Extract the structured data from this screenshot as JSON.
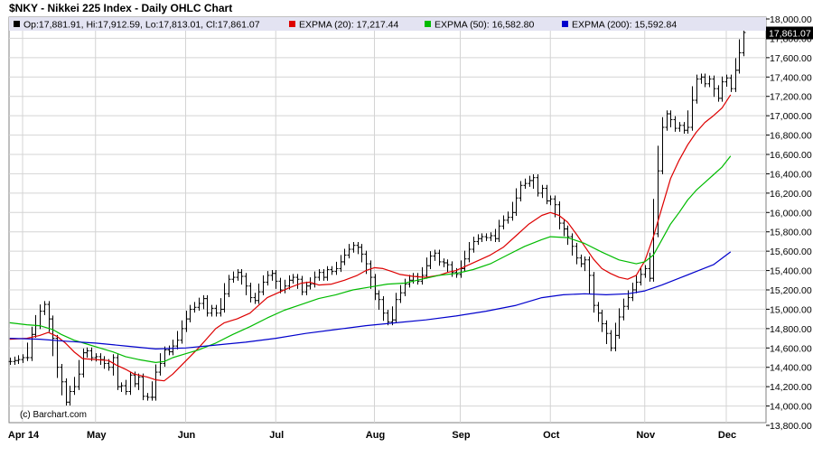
{
  "chart_data": {
    "type": "ohlc",
    "title": "$NKY - Nikkei 225 Index - Daily OHLC Chart",
    "watermark": "(c) Barchart.com",
    "ohlc_label": "Op:17,881.91, Hi:17,912.59, Lo:17,813.01, Cl:17,861.07",
    "last_price_label": "17,861.07",
    "last_close": 17861.07,
    "ylim": [
      13800,
      18000
    ],
    "y_ticks": [
      13800,
      14000,
      14200,
      14400,
      14600,
      14800,
      15000,
      15200,
      15400,
      15600,
      15800,
      16000,
      16200,
      16400,
      16600,
      16800,
      17000,
      17200,
      17400,
      17600,
      17800,
      18000
    ],
    "y_tick_labels": [
      "13,800.00",
      "14,000.00",
      "14,200.00",
      "14,400.00",
      "14,600.00",
      "14,800.00",
      "15,000.00",
      "15,200.00",
      "15,400.00",
      "15,600.00",
      "15,800.00",
      "16,000.00",
      "16,200.00",
      "16,400.00",
      "16,600.00",
      "16,800.00",
      "17,000.00",
      "17,200.00",
      "17,400.00",
      "17,600.00",
      "17,800.00",
      "18,000.00"
    ],
    "x_ticks": [
      {
        "label": "Apr 14",
        "day": 0
      },
      {
        "label": "May",
        "day": 17
      },
      {
        "label": "Jun",
        "day": 38
      },
      {
        "label": "Jul",
        "day": 59
      },
      {
        "label": "Aug",
        "day": 82
      },
      {
        "label": "Sep",
        "day": 102
      },
      {
        "label": "Oct",
        "day": 123
      },
      {
        "label": "Nov",
        "day": 145
      },
      {
        "label": "Dec",
        "day": 164
      }
    ],
    "x_range": [
      -3,
      168
    ],
    "grid": true,
    "colors": {
      "price": "#000000",
      "ema20": "#dd0000",
      "ema50": "#00bb00",
      "ema200": "#0000cc",
      "grid": "#d4d4d4",
      "legend_bg": "#e3e3f2"
    },
    "legend": [
      {
        "label": "EXPMA (20): 17,217.44",
        "color": "#dd0000"
      },
      {
        "label": "EXPMA (50): 16,582.80",
        "color": "#00bb00"
      },
      {
        "label": "EXPMA (200): 15,592.84",
        "color": "#0000cc"
      }
    ],
    "series": [
      {
        "name": "EXPMA (20)",
        "color": "#dd0000",
        "points": [
          [
            -3,
            14690
          ],
          [
            1,
            14700
          ],
          [
            4,
            14730
          ],
          [
            6,
            14760
          ],
          [
            8,
            14720
          ],
          [
            10,
            14650
          ],
          [
            12,
            14560
          ],
          [
            14,
            14490
          ],
          [
            17,
            14480
          ],
          [
            20,
            14470
          ],
          [
            22,
            14420
          ],
          [
            24,
            14380
          ],
          [
            26,
            14330
          ],
          [
            29,
            14300
          ],
          [
            31,
            14270
          ],
          [
            33,
            14260
          ],
          [
            35,
            14330
          ],
          [
            37,
            14420
          ],
          [
            39,
            14510
          ],
          [
            41,
            14600
          ],
          [
            43,
            14700
          ],
          [
            45,
            14800
          ],
          [
            47,
            14860
          ],
          [
            50,
            14900
          ],
          [
            53,
            14960
          ],
          [
            55,
            15040
          ],
          [
            57,
            15120
          ],
          [
            59,
            15160
          ],
          [
            62,
            15220
          ],
          [
            65,
            15270
          ],
          [
            67,
            15280
          ],
          [
            69,
            15250
          ],
          [
            72,
            15260
          ],
          [
            75,
            15300
          ],
          [
            78,
            15350
          ],
          [
            80,
            15400
          ],
          [
            82,
            15430
          ],
          [
            84,
            15420
          ],
          [
            86,
            15390
          ],
          [
            88,
            15360
          ],
          [
            91,
            15340
          ],
          [
            94,
            15330
          ],
          [
            97,
            15350
          ],
          [
            99,
            15380
          ],
          [
            101,
            15400
          ],
          [
            103,
            15440
          ],
          [
            106,
            15500
          ],
          [
            109,
            15560
          ],
          [
            112,
            15640
          ],
          [
            115,
            15760
          ],
          [
            118,
            15880
          ],
          [
            121,
            15970
          ],
          [
            123,
            16000
          ],
          [
            125,
            15970
          ],
          [
            127,
            15900
          ],
          [
            129,
            15780
          ],
          [
            131,
            15650
          ],
          [
            133,
            15520
          ],
          [
            135,
            15420
          ],
          [
            137,
            15370
          ],
          [
            139,
            15330
          ],
          [
            141,
            15310
          ],
          [
            143,
            15350
          ],
          [
            145,
            15500
          ],
          [
            147,
            15750
          ],
          [
            149,
            16050
          ],
          [
            151,
            16350
          ],
          [
            153,
            16540
          ],
          [
            155,
            16700
          ],
          [
            157,
            16830
          ],
          [
            159,
            16930
          ],
          [
            161,
            17000
          ],
          [
            163,
            17080
          ],
          [
            165,
            17217
          ]
        ]
      },
      {
        "name": "EXPMA (50)",
        "color": "#00bb00",
        "points": [
          [
            -3,
            14860
          ],
          [
            1,
            14840
          ],
          [
            4,
            14830
          ],
          [
            7,
            14790
          ],
          [
            9,
            14740
          ],
          [
            12,
            14680
          ],
          [
            15,
            14640
          ],
          [
            18,
            14600
          ],
          [
            21,
            14560
          ],
          [
            24,
            14510
          ],
          [
            27,
            14480
          ],
          [
            31,
            14450
          ],
          [
            33,
            14460
          ],
          [
            35,
            14500
          ],
          [
            38,
            14540
          ],
          [
            41,
            14580
          ],
          [
            45,
            14650
          ],
          [
            49,
            14740
          ],
          [
            53,
            14820
          ],
          [
            57,
            14910
          ],
          [
            61,
            14990
          ],
          [
            65,
            15050
          ],
          [
            69,
            15110
          ],
          [
            73,
            15150
          ],
          [
            77,
            15200
          ],
          [
            81,
            15230
          ],
          [
            85,
            15260
          ],
          [
            89,
            15270
          ],
          [
            93,
            15310
          ],
          [
            97,
            15350
          ],
          [
            101,
            15370
          ],
          [
            105,
            15410
          ],
          [
            109,
            15470
          ],
          [
            113,
            15560
          ],
          [
            117,
            15650
          ],
          [
            121,
            15720
          ],
          [
            123,
            15750
          ],
          [
            127,
            15740
          ],
          [
            131,
            15680
          ],
          [
            135,
            15590
          ],
          [
            139,
            15510
          ],
          [
            143,
            15470
          ],
          [
            145,
            15490
          ],
          [
            147,
            15560
          ],
          [
            149,
            15720
          ],
          [
            151,
            15880
          ],
          [
            153,
            16000
          ],
          [
            155,
            16130
          ],
          [
            157,
            16230
          ],
          [
            159,
            16310
          ],
          [
            161,
            16390
          ],
          [
            163,
            16470
          ],
          [
            165,
            16583
          ]
        ]
      },
      {
        "name": "EXPMA (200)",
        "color": "#0000cc",
        "points": [
          [
            -3,
            14700
          ],
          [
            4,
            14690
          ],
          [
            10,
            14670
          ],
          [
            17,
            14650
          ],
          [
            24,
            14620
          ],
          [
            31,
            14590
          ],
          [
            38,
            14600
          ],
          [
            45,
            14630
          ],
          [
            52,
            14660
          ],
          [
            59,
            14700
          ],
          [
            66,
            14750
          ],
          [
            73,
            14790
          ],
          [
            80,
            14830
          ],
          [
            87,
            14860
          ],
          [
            94,
            14890
          ],
          [
            101,
            14930
          ],
          [
            108,
            14980
          ],
          [
            115,
            15040
          ],
          [
            121,
            15120
          ],
          [
            126,
            15150
          ],
          [
            131,
            15160
          ],
          [
            136,
            15150
          ],
          [
            141,
            15160
          ],
          [
            145,
            15190
          ],
          [
            149,
            15250
          ],
          [
            153,
            15320
          ],
          [
            157,
            15390
          ],
          [
            161,
            15460
          ],
          [
            165,
            15593
          ]
        ]
      }
    ],
    "price_points": [
      [
        -3,
        14460
      ],
      [
        -2,
        14470
      ],
      [
        -1,
        14480
      ],
      [
        0,
        14500
      ],
      [
        1,
        14500
      ],
      [
        2,
        14740
      ],
      [
        3,
        14830
      ],
      [
        4,
        14980
      ],
      [
        5,
        15050
      ],
      [
        6,
        14900
      ],
      [
        7,
        14700
      ],
      [
        8,
        14400
      ],
      [
        9,
        14250
      ],
      [
        10,
        14040
      ],
      [
        11,
        14150
      ],
      [
        12,
        14200
      ],
      [
        13,
        14330
      ],
      [
        14,
        14550
      ],
      [
        15,
        14570
      ],
      [
        16,
        14500
      ],
      [
        17,
        14510
      ],
      [
        18,
        14480
      ],
      [
        19,
        14440
      ],
      [
        20,
        14400
      ],
      [
        21,
        14500
      ],
      [
        22,
        14200
      ],
      [
        23,
        14210
      ],
      [
        24,
        14150
      ],
      [
        25,
        14320
      ],
      [
        26,
        14230
      ],
      [
        27,
        14300
      ],
      [
        28,
        14100
      ],
      [
        29,
        14090
      ],
      [
        30,
        14090
      ],
      [
        31,
        14350
      ],
      [
        32,
        14440
      ],
      [
        33,
        14580
      ],
      [
        34,
        14560
      ],
      [
        35,
        14620
      ],
      [
        36,
        14680
      ],
      [
        37,
        14800
      ],
      [
        38,
        14900
      ],
      [
        39,
        15000
      ],
      [
        40,
        15020
      ],
      [
        41,
        15060
      ],
      [
        42,
        15110
      ],
      [
        43,
        14960
      ],
      [
        44,
        15010
      ],
      [
        45,
        14960
      ],
      [
        46,
        15000
      ],
      [
        47,
        15160
      ],
      [
        48,
        15310
      ],
      [
        49,
        15330
      ],
      [
        50,
        15380
      ],
      [
        51,
        15340
      ],
      [
        52,
        15240
      ],
      [
        53,
        15120
      ],
      [
        54,
        15090
      ],
      [
        55,
        15180
      ],
      [
        56,
        15280
      ],
      [
        57,
        15350
      ],
      [
        58,
        15370
      ],
      [
        59,
        15290
      ],
      [
        60,
        15200
      ],
      [
        61,
        15240
      ],
      [
        62,
        15300
      ],
      [
        63,
        15330
      ],
      [
        64,
        15310
      ],
      [
        65,
        15180
      ],
      [
        66,
        15240
      ],
      [
        67,
        15260
      ],
      [
        68,
        15330
      ],
      [
        69,
        15380
      ],
      [
        70,
        15330
      ],
      [
        71,
        15410
      ],
      [
        72,
        15390
      ],
      [
        73,
        15420
      ],
      [
        74,
        15490
      ],
      [
        75,
        15560
      ],
      [
        76,
        15620
      ],
      [
        77,
        15660
      ],
      [
        78,
        15640
      ],
      [
        79,
        15570
      ],
      [
        80,
        15470
      ],
      [
        81,
        15330
      ],
      [
        82,
        15160
      ],
      [
        83,
        15100
      ],
      [
        84,
        14960
      ],
      [
        85,
        14870
      ],
      [
        86,
        14890
      ],
      [
        87,
        15100
      ],
      [
        88,
        15170
      ],
      [
        89,
        15260
      ],
      [
        90,
        15300
      ],
      [
        91,
        15340
      ],
      [
        92,
        15290
      ],
      [
        93,
        15350
      ],
      [
        94,
        15450
      ],
      [
        95,
        15550
      ],
      [
        96,
        15580
      ],
      [
        97,
        15490
      ],
      [
        98,
        15480
      ],
      [
        99,
        15460
      ],
      [
        100,
        15380
      ],
      [
        101,
        15360
      ],
      [
        102,
        15420
      ],
      [
        103,
        15520
      ],
      [
        104,
        15620
      ],
      [
        105,
        15700
      ],
      [
        106,
        15730
      ],
      [
        107,
        15750
      ],
      [
        108,
        15740
      ],
      [
        109,
        15760
      ],
      [
        110,
        15730
      ],
      [
        111,
        15860
      ],
      [
        112,
        15920
      ],
      [
        113,
        15950
      ],
      [
        114,
        16000
      ],
      [
        115,
        16150
      ],
      [
        116,
        16280
      ],
      [
        117,
        16300
      ],
      [
        118,
        16330
      ],
      [
        119,
        16360
      ],
      [
        120,
        16200
      ],
      [
        121,
        16250
      ],
      [
        122,
        16120
      ],
      [
        123,
        16140
      ],
      [
        124,
        16080
      ],
      [
        125,
        15890
      ],
      [
        126,
        15830
      ],
      [
        127,
        15750
      ],
      [
        128,
        15650
      ],
      [
        129,
        15530
      ],
      [
        130,
        15470
      ],
      [
        131,
        15510
      ],
      [
        132,
        15350
      ],
      [
        133,
        15040
      ],
      [
        134,
        14960
      ],
      [
        135,
        14850
      ],
      [
        136,
        14750
      ],
      [
        137,
        14600
      ],
      [
        138,
        14730
      ],
      [
        139,
        14920
      ],
      [
        140,
        15030
      ],
      [
        141,
        15120
      ],
      [
        142,
        15200
      ],
      [
        143,
        15280
      ],
      [
        144,
        15360
      ],
      [
        145,
        15420
      ],
      [
        146,
        15320
      ],
      [
        147,
        15780
      ],
      [
        148,
        16430
      ],
      [
        149,
        16880
      ],
      [
        150,
        17020
      ],
      [
        151,
        16960
      ],
      [
        152,
        16870
      ],
      [
        153,
        16900
      ],
      [
        154,
        16850
      ],
      [
        155,
        16880
      ],
      [
        156,
        17160
      ],
      [
        157,
        17380
      ],
      [
        158,
        17400
      ],
      [
        159,
        17330
      ],
      [
        160,
        17380
      ],
      [
        161,
        17280
      ],
      [
        162,
        17180
      ],
      [
        163,
        17350
      ],
      [
        164,
        17390
      ],
      [
        165,
        17280
      ],
      [
        166,
        17470
      ],
      [
        167,
        17650
      ],
      [
        168,
        17860
      ]
    ]
  }
}
